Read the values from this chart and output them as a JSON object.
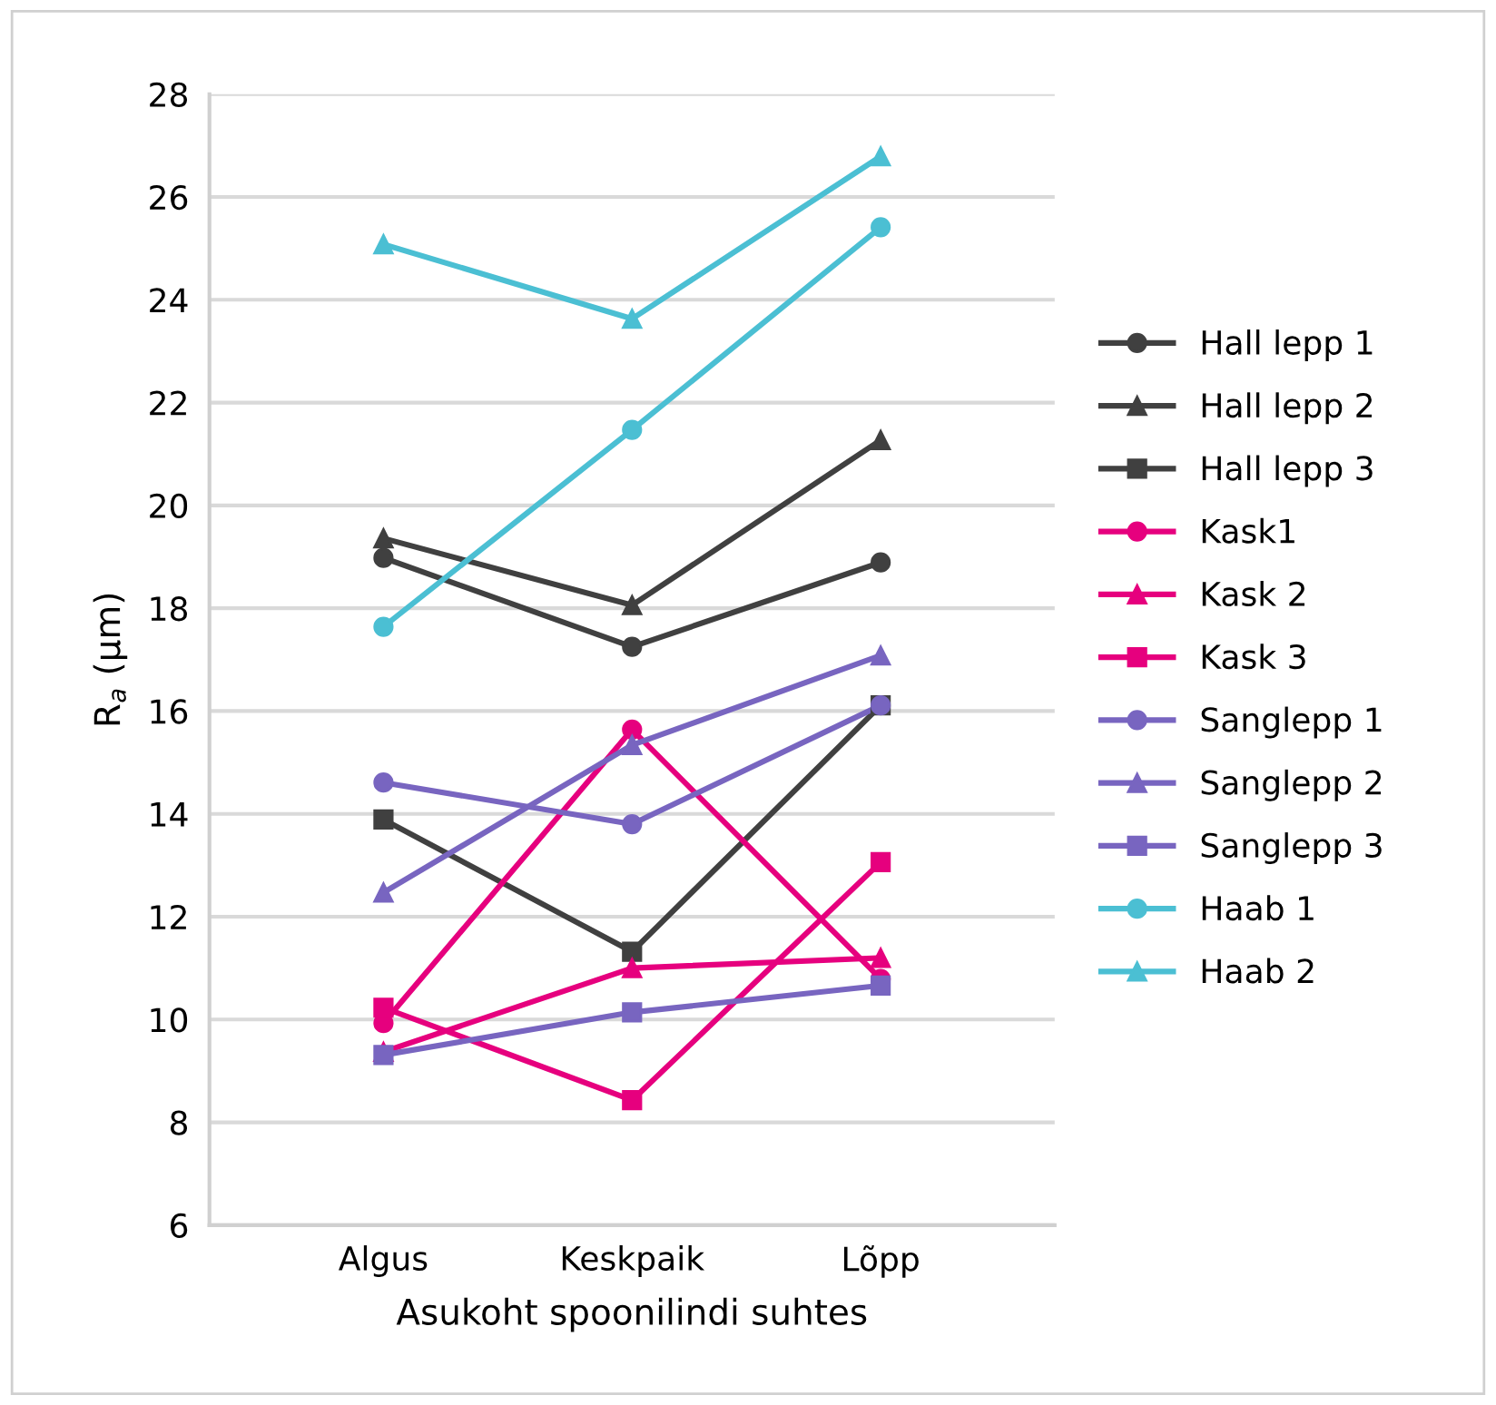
{
  "chart_data": {
    "type": "line",
    "xlabel": "Asukoht spoonilindi suhtes",
    "ylabel": "R$_{a}$ (µm)",
    "categories": [
      "Algus",
      "Keskpaik",
      "Lõpp"
    ],
    "ylim": [
      6,
      28
    ],
    "yticks": [
      6,
      8,
      10,
      12,
      14,
      16,
      18,
      20,
      22,
      24,
      26,
      28
    ],
    "grid": "y",
    "legend": "right",
    "series": [
      {
        "name": "Hall lepp 1",
        "color": "#404040",
        "marker": "circle",
        "values": [
          18.98,
          17.25,
          18.89
        ]
      },
      {
        "name": "Hall lepp 2",
        "color": "#404040",
        "marker": "triangle",
        "values": [
          19.36,
          18.06,
          21.27
        ]
      },
      {
        "name": "Hall lepp 3",
        "color": "#404040",
        "marker": "square",
        "values": [
          13.89,
          11.32,
          16.11
        ]
      },
      {
        "name": "Kask1",
        "color": "#e6007e",
        "marker": "circle",
        "values": [
          9.93,
          15.64,
          10.79
        ]
      },
      {
        "name": "Kask 2",
        "color": "#e6007e",
        "marker": "triangle",
        "values": [
          9.37,
          11.0,
          11.2
        ]
      },
      {
        "name": "Kask 3",
        "color": "#e6007e",
        "marker": "square",
        "values": [
          10.23,
          8.43,
          13.06
        ]
      },
      {
        "name": "Sanglepp 1",
        "color": "#7865c0",
        "marker": "circle",
        "values": [
          14.61,
          13.8,
          16.11
        ]
      },
      {
        "name": "Sanglepp 2",
        "color": "#7865c0",
        "marker": "triangle",
        "values": [
          12.47,
          15.34,
          17.08
        ]
      },
      {
        "name": "Sanglepp 3",
        "color": "#7865c0",
        "marker": "square",
        "values": [
          9.31,
          10.14,
          10.66
        ]
      },
      {
        "name": "Haab 1",
        "color": "#4bbfd3",
        "marker": "circle",
        "values": [
          17.64,
          21.47,
          25.41
        ]
      },
      {
        "name": "Haab 2",
        "color": "#4bbfd3",
        "marker": "triangle",
        "values": [
          25.08,
          23.63,
          26.79
        ]
      }
    ]
  }
}
